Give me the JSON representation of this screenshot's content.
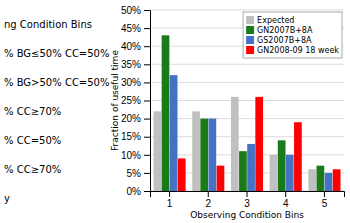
{
  "chart_data": {
    "type": "bar",
    "x_label": "Observing Condition Bins",
    "y_label": "Fraction of  useful time",
    "annotations": [
      "ng Condition Bins",
      "% BG≤50% CC=50%",
      "% BG>50% CC=50%",
      "% CC≥70%",
      "% CC=50%",
      "% CC≥70%",
      "y"
    ],
    "categories": [
      1,
      2,
      3,
      4,
      5
    ],
    "series": [
      {
        "name": "Expected",
        "color": "#c0c0c0",
        "values": [
          22,
          22,
          26,
          10,
          6
        ]
      },
      {
        "name": "GN2007B+8A",
        "color": "#1a7a1a",
        "values": [
          43,
          20,
          11,
          14,
          7
        ]
      },
      {
        "name": "GS2007B+8A",
        "color": "#4472c4",
        "values": [
          32,
          20,
          13,
          10,
          5
        ]
      },
      {
        "name": "GN2008-09 18 week",
        "color": "#ff0000",
        "values": [
          9,
          7,
          26,
          19,
          6
        ]
      }
    ],
    "ylim": [
      0,
      50
    ],
    "yticks": [
      {
        "value": 0,
        "label": "0%"
      },
      {
        "value": 5,
        "label": "5%"
      },
      {
        "value": 10,
        "label": "10%"
      },
      {
        "value": 15,
        "label": "15%"
      },
      {
        "value": 20,
        "label": "20%"
      },
      {
        "value": 25,
        "label": "25%"
      },
      {
        "value": 30,
        "label": "30%"
      },
      {
        "value": 35,
        "label": "35%"
      },
      {
        "value": 40,
        "label": "40%"
      },
      {
        "value": 45,
        "label": "45%"
      },
      {
        "value": 50,
        "label": "50%"
      }
    ],
    "grid": true,
    "legend": "upper right"
  }
}
